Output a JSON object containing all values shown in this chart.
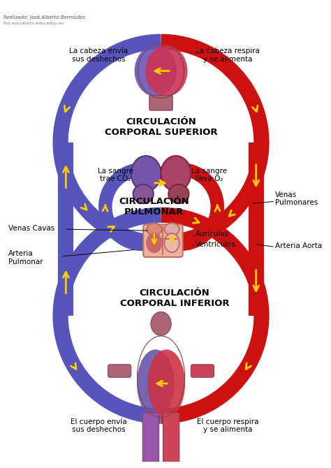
{
  "bg_color": "#ffffff",
  "blue_color": "#5555bb",
  "red_color": "#cc1111",
  "yellow": "#ffcc00",
  "labels": {
    "circ_superior": "CIRCULACIÓN\nCORPORAL SUPERIOR",
    "circ_pulmonar": "CIRCULACIÓN\nPULMONAR",
    "circ_inferior": "CIRCULACIÓN\nCORPORAL INFERIOR",
    "cabeza_envia": "La cabeza envía\nsus deshechos",
    "cabeza_respira": "La cabeza respira\ny se alimenta",
    "sangre_co2": "La sangre\ntrae CO₂",
    "sangre_o2": "La sangre\nlleva O₂",
    "venas_cavas": "Venas Cavas",
    "venas_pulm": "Venas\nPulmonares",
    "art_pulm": "Arteria\nPulmonar",
    "auriculas": "Aurículas",
    "ventriculos": "Ventrículos",
    "art_aorta": "Arteria Aorta",
    "cuerpo_envia": "El cuerpo envía\nsus deshechos",
    "cuerpo_respira": "El cuerpo respira\ny se alimenta"
  },
  "watermark1": "Realizado: José Alberto Bermúdez",
  "watermark2": "Por encuentro.educativo.es"
}
